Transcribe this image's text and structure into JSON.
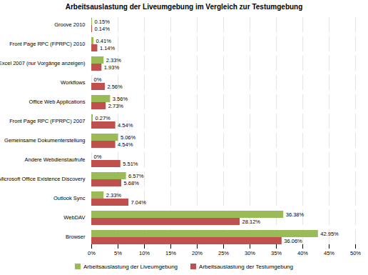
{
  "chart_data": {
    "type": "bar",
    "orientation": "horizontal",
    "title": "Arbeitsauslastung der Liveumgebung im Vergleich zur Testumgebung",
    "categories": [
      "Groove 2010",
      "Front Page RPC (FPRPC) 2010",
      "Excel 2007 (nur Vorgänge anzeigen)",
      "Workflows",
      "Office Web Applications",
      "Front Page RPC (FPRPC) 2007",
      "Gemeinsame Dokumenterstellung",
      "Andere Webdienstaufrufe",
      "Microsoft Office Existence Discovery",
      "Outlook Sync",
      "WebDAV",
      "Browser"
    ],
    "series": [
      {
        "name": "Arbeitsauslastung der Liveumgebung",
        "color": "#9bbb59",
        "values": [
          0.15,
          0.41,
          2.33,
          0,
          3.56,
          0.27,
          5.06,
          0,
          6.57,
          2.33,
          36.38,
          42.95
        ],
        "value_labels": [
          "0.15%",
          "0.41%",
          "2.33%",
          "0%",
          "3.56%",
          "0.27%",
          "5.06%",
          "0%",
          "6.57%",
          "2.33%",
          "36.38%",
          "42.95%"
        ]
      },
      {
        "name": "Arbeitsauslastung der Testumgebung",
        "color": "#c0504d",
        "values": [
          0.14,
          1.14,
          1.93,
          2.56,
          2.73,
          4.54,
          4.54,
          5.51,
          5.68,
          7.04,
          28.12,
          36.06
        ],
        "value_labels": [
          "0.14%",
          "1.14%",
          "1.93%",
          "2.56%",
          "2.73%",
          "4.54%",
          "4.54%",
          "5.51%",
          "5.68%",
          "7.04%",
          "28.12%",
          "36.06%"
        ]
      }
    ],
    "xlim": [
      0,
      50
    ],
    "xticks": [
      {
        "value": 0,
        "label": "0%"
      },
      {
        "value": 5,
        "label": "5%"
      },
      {
        "value": 10,
        "label": "10%"
      },
      {
        "value": 15,
        "label": "15%"
      },
      {
        "value": 20,
        "label": "20%"
      },
      {
        "value": 25,
        "label": "25%"
      },
      {
        "value": 30,
        "label": "30%"
      },
      {
        "value": 35,
        "label": "35%"
      },
      {
        "value": 40,
        "label": "40%"
      },
      {
        "value": 45,
        "label": "45%"
      },
      {
        "value": 50,
        "label": "50%"
      }
    ],
    "grid": true,
    "legend": "bottom",
    "data_labels": true
  }
}
